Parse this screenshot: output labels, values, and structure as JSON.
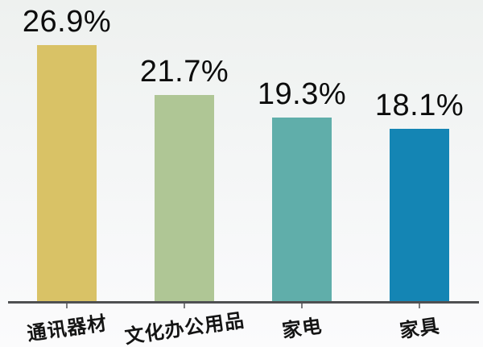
{
  "chart_data": {
    "type": "bar",
    "categories": [
      "通讯器材",
      "文化办公用品",
      "家电",
      "家具"
    ],
    "values": [
      26.9,
      21.7,
      19.3,
      18.1
    ],
    "value_labels": [
      "26.9%",
      "21.7%",
      "19.3%",
      "18.1%"
    ],
    "bar_colors": [
      "#d9c266",
      "#afc695",
      "#60aeaa",
      "#1485b4"
    ],
    "title": "",
    "xlabel": "",
    "ylabel": "",
    "ylim": [
      0,
      30
    ],
    "grid": false,
    "legend": "none",
    "axis_line_color": "#4f5052",
    "value_label_color": "#0c0c0c",
    "category_label_color": "#141414"
  }
}
